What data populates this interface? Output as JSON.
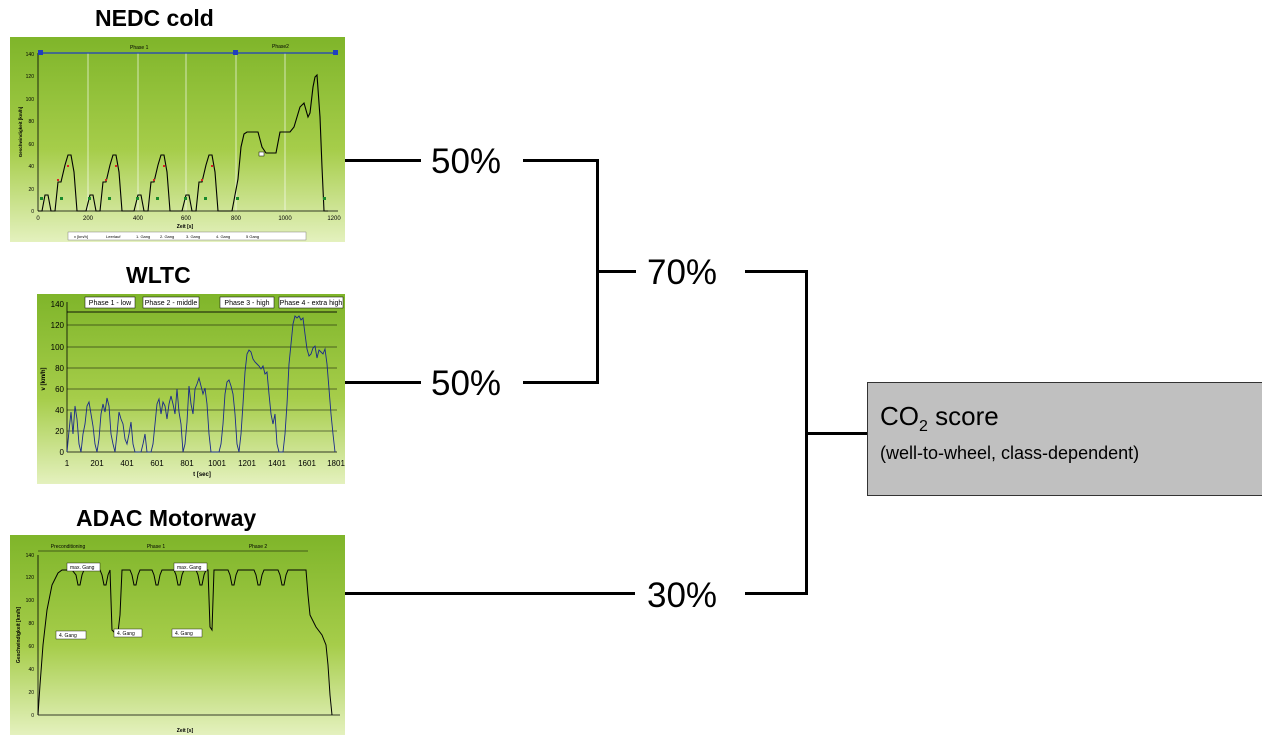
{
  "titles": {
    "nedc": "NEDC cold",
    "wltc": "WLTC",
    "adac": "ADAC Motorway"
  },
  "weights": {
    "nedc": "50%",
    "wltc": "50%",
    "combined": "70%",
    "adac": "30%"
  },
  "result": {
    "co2_main": "CO",
    "co2_subscript": "2",
    "co2_suffix": " score",
    "note": "(well-to-wheel, class-dependent)"
  },
  "nedc_chart": {
    "phase1": "Phase 1",
    "phase2": "Phase2",
    "xlabel": "Zeit [s]",
    "ylabel": "Geschwindigkeit [km/h]",
    "xticks": [
      "0",
      "200",
      "400",
      "600",
      "800",
      "1000",
      "1200"
    ],
    "yticks": [
      "0",
      "20",
      "40",
      "60",
      "80",
      "100",
      "120",
      "140"
    ],
    "legend": [
      "v [km/h]",
      "Leerlauf",
      "1. Gang",
      "2. Gang",
      "3. Gang",
      "4. Gang",
      "5 Gang"
    ]
  },
  "wltc_chart": {
    "phases": [
      "Phase 1 - low",
      "Phase 2 - middle",
      "Phase 3 - high",
      "Phase 4 - extra high"
    ],
    "xlabel": "t [sec]",
    "ylabel": "v [km/h]",
    "xticks": [
      "1",
      "201",
      "401",
      "601",
      "801",
      "1001",
      "1201",
      "1401",
      "1601",
      "1801"
    ],
    "yticks": [
      "0",
      "20",
      "40",
      "60",
      "80",
      "100",
      "120",
      "140"
    ]
  },
  "adac_chart": {
    "phases": [
      "Preconditioning",
      "Phase 1",
      "Phase 2"
    ],
    "labels": [
      "max. Gang",
      "max. Gang",
      "4. Gang",
      "4. Gang",
      "4. Gang"
    ],
    "xlabel": "Zeit [s]",
    "ylabel": "Geschwindigkeit [km/h]",
    "yticks": [
      "0",
      "20",
      "40",
      "60",
      "80",
      "100",
      "120",
      "140"
    ]
  },
  "colors": {
    "panel_top": "#7fb52a",
    "panel_bottom": "#e4f1be",
    "trace": "#000000",
    "wltc_trace": "#1a2a8a",
    "phase_marker": "#1f3fbf",
    "box": "#c0c0c0"
  }
}
